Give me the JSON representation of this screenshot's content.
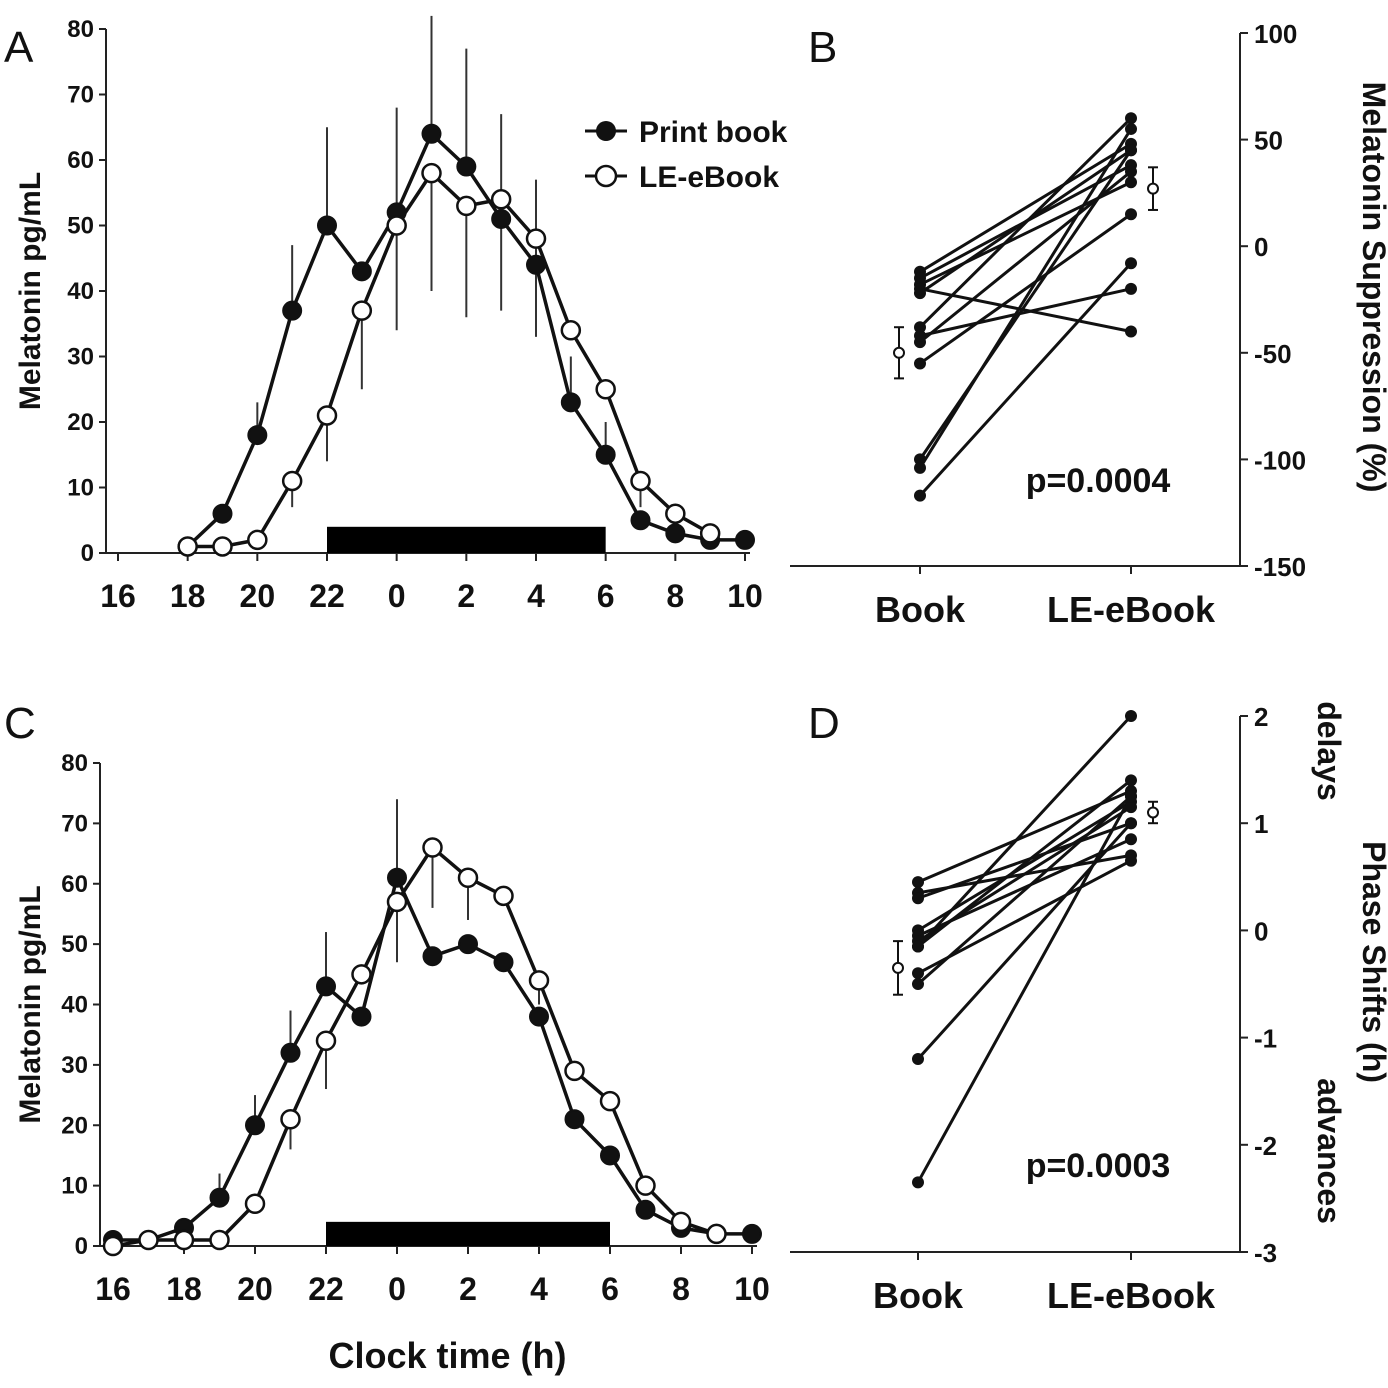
{
  "chart_data": [
    {
      "panel": "A",
      "type": "line",
      "title": "",
      "xlabel": "",
      "ylabel": "Melatonin pg/mL",
      "xlim": [
        16,
        10
      ],
      "ylim": [
        0,
        80
      ],
      "x_ticks": [
        "16",
        "18",
        "20",
        "22",
        "0",
        "2",
        "4",
        "6",
        "8",
        "10"
      ],
      "y_ticks": [
        "0",
        "10",
        "20",
        "30",
        "40",
        "50",
        "60",
        "70",
        "80"
      ],
      "grid": false,
      "legend": {
        "placement": "top-right",
        "entries": [
          "Print book",
          "LE-eBook"
        ]
      },
      "dark_bar": [
        22,
        6
      ],
      "x": [
        "18",
        "19",
        "20",
        "21",
        "22",
        "23",
        "0",
        "1",
        "2",
        "3",
        "4",
        "5",
        "6",
        "7",
        "8",
        "9",
        "10"
      ],
      "series": [
        {
          "name": "Print book",
          "marker": "filled",
          "values": [
            1,
            6,
            18,
            37,
            50,
            43,
            52,
            64,
            59,
            51,
            44,
            23,
            15,
            5,
            3,
            2,
            2
          ],
          "error_upper": [
            null,
            null,
            23,
            47,
            65,
            null,
            68,
            82,
            77,
            67,
            57,
            30,
            20,
            null,
            null,
            null,
            null
          ]
        },
        {
          "name": "LE-eBook",
          "marker": "open",
          "values": [
            1,
            1,
            2,
            11,
            21,
            37,
            50,
            58,
            53,
            54,
            48,
            34,
            25,
            11,
            6,
            3,
            null
          ],
          "error_lower": [
            null,
            null,
            null,
            7,
            14,
            25,
            34,
            40,
            36,
            37,
            33,
            null,
            null,
            7,
            null,
            null,
            null
          ]
        }
      ]
    },
    {
      "panel": "B",
      "type": "line",
      "title": "",
      "xlabel": "",
      "ylabel": "Melatonin Suppression (%)",
      "categories": [
        "Book",
        "LE-eBook"
      ],
      "ylim": [
        -150,
        100
      ],
      "y_ticks": [
        "-150",
        "-100",
        "-50",
        "0",
        "50",
        "100"
      ],
      "y_axis_side": "right",
      "annotation": "p=0.0004",
      "subjects": [
        [
          -12,
          48
        ],
        [
          -15,
          38
        ],
        [
          -18,
          30
        ],
        [
          -22,
          45
        ],
        [
          -20,
          -40
        ],
        [
          -38,
          60
        ],
        [
          -45,
          35
        ],
        [
          -55,
          15
        ],
        [
          -100,
          45
        ],
        [
          -104,
          55
        ],
        [
          -117,
          -8
        ],
        [
          -42,
          -20
        ]
      ],
      "means": {
        "Book": {
          "mean": -50,
          "err": 12
        },
        "LE-eBook": {
          "mean": 27,
          "err": 10
        }
      }
    },
    {
      "panel": "C",
      "type": "line",
      "title": "",
      "xlabel": "Clock time (h)",
      "ylabel": "Melatonin pg/mL",
      "xlim": [
        16,
        10
      ],
      "ylim": [
        0,
        80
      ],
      "x_ticks": [
        "16",
        "18",
        "20",
        "22",
        "0",
        "2",
        "4",
        "6",
        "8",
        "10"
      ],
      "y_ticks": [
        "0",
        "10",
        "20",
        "30",
        "40",
        "50",
        "60",
        "70",
        "80"
      ],
      "grid": false,
      "dark_bar": [
        22,
        6
      ],
      "x": [
        "16",
        "17",
        "18",
        "19",
        "20",
        "21",
        "22",
        "23",
        "0",
        "1",
        "2",
        "3",
        "4",
        "5",
        "6",
        "7",
        "8",
        "9",
        "10"
      ],
      "series": [
        {
          "name": "Print book",
          "marker": "filled",
          "values": [
            1,
            1,
            3,
            8,
            20,
            32,
            43,
            38,
            61,
            48,
            50,
            47,
            38,
            21,
            15,
            6,
            3,
            2,
            2
          ],
          "error_upper": [
            null,
            null,
            null,
            12,
            25,
            39,
            52,
            null,
            74,
            null,
            null,
            null,
            null,
            null,
            null,
            null,
            null,
            null,
            null
          ]
        },
        {
          "name": "LE-eBook",
          "marker": "open",
          "values": [
            0,
            1,
            1,
            1,
            7,
            21,
            34,
            45,
            57,
            66,
            61,
            58,
            44,
            29,
            24,
            10,
            4,
            2,
            null
          ],
          "error_lower": [
            null,
            null,
            null,
            null,
            null,
            16,
            26,
            null,
            47,
            56,
            54,
            null,
            40,
            null,
            null,
            null,
            null,
            null,
            null
          ]
        }
      ]
    },
    {
      "panel": "D",
      "type": "line",
      "title": "",
      "xlabel": "",
      "ylabel": "Phase Shifts (h)",
      "ylabel_extra": [
        "delays",
        "advances"
      ],
      "categories": [
        "Book",
        "LE-eBook"
      ],
      "ylim": [
        -3,
        2
      ],
      "y_ticks": [
        "-3",
        "-2",
        "-1",
        "0",
        "1",
        "2"
      ],
      "y_axis_side": "right",
      "annotation": "p=0.0003",
      "subjects": [
        [
          0.45,
          1.3
        ],
        [
          0.35,
          0.7
        ],
        [
          0.0,
          1.2
        ],
        [
          -0.05,
          0.85
        ],
        [
          -0.1,
          1.15
        ],
        [
          -0.15,
          1.4
        ],
        [
          -0.4,
          0.65
        ],
        [
          -0.5,
          1.25
        ],
        [
          -1.2,
          1.0
        ],
        [
          -2.35,
          1.25
        ],
        [
          0.3,
          1.0
        ],
        [
          -0.15,
          2.0
        ]
      ],
      "means": {
        "Book": {
          "mean": -0.35,
          "err": 0.25
        },
        "LE-eBook": {
          "mean": 1.1,
          "err": 0.1
        }
      }
    }
  ]
}
